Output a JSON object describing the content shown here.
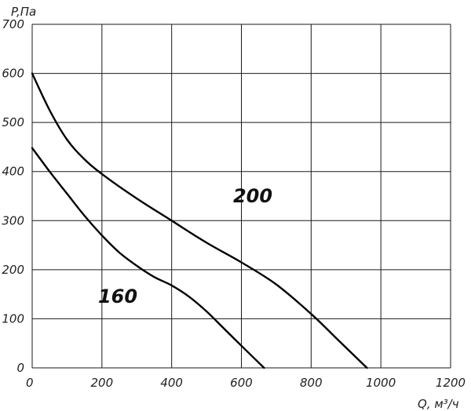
{
  "chart_data": {
    "type": "line",
    "xlabel": "Q, м³/ч",
    "ylabel": "P,Па",
    "xlim": [
      0,
      1200
    ],
    "ylim": [
      0,
      700
    ],
    "xticks": [
      "0",
      "200",
      "400",
      "600",
      "800",
      "1000",
      "1200"
    ],
    "yticks": [
      "0",
      "100",
      "200",
      "300",
      "400",
      "500",
      "600",
      "700"
    ],
    "grid": true,
    "series": [
      {
        "name": "200",
        "x": [
          0,
          50,
          100,
          150,
          200,
          300,
          400,
          500,
          600,
          700,
          800,
          880,
          960
        ],
        "y": [
          600,
          525,
          465,
          425,
          395,
          345,
          300,
          255,
          215,
          170,
          110,
          55,
          0
        ]
      },
      {
        "name": "160",
        "x": [
          0,
          50,
          100,
          150,
          200,
          250,
          300,
          350,
          400,
          450,
          500,
          550,
          600,
          665
        ],
        "y": [
          448,
          400,
          355,
          310,
          270,
          235,
          208,
          185,
          168,
          145,
          115,
          80,
          45,
          0
        ]
      }
    ]
  }
}
